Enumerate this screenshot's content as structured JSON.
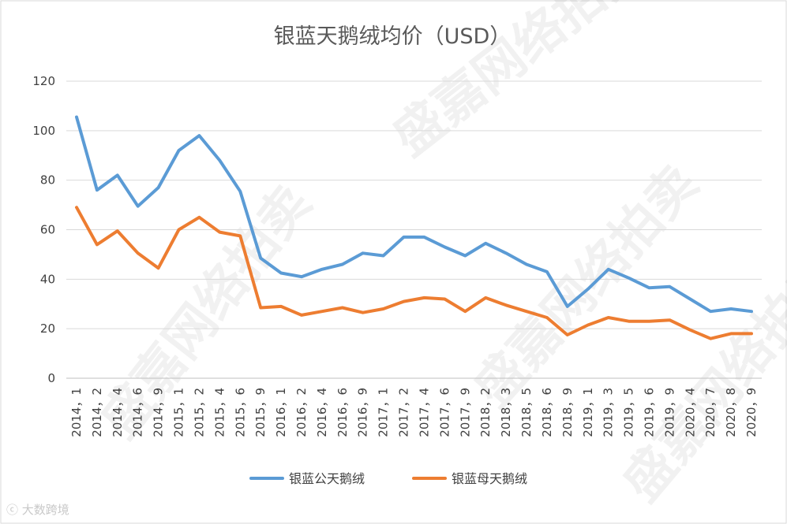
{
  "chart_data": {
    "type": "line",
    "title": "银蓝天鹅绒均价（USD）",
    "xlabel": "",
    "ylabel": "",
    "ylim": [
      0,
      120
    ],
    "yticks": [
      0,
      20,
      40,
      60,
      80,
      100,
      120
    ],
    "grid": true,
    "legend_position": "bottom",
    "categories": [
      "2014，1",
      "2014，2",
      "2014，4",
      "2014，6",
      "2014，9",
      "2015，1",
      "2015，2",
      "2015，4",
      "2015，6",
      "2015，9",
      "2016，1",
      "2016，2",
      "2016，4",
      "2016，6",
      "2016，9",
      "2017，1",
      "2017，2",
      "2017，4",
      "2017，6",
      "2017，9",
      "2018，2",
      "2018，3",
      "2018，5",
      "2018，6",
      "2018，9",
      "2019，1",
      "2019，3",
      "2019，5",
      "2019，6",
      "2019，9",
      "2020，4",
      "2020，7",
      "2020，8",
      "2020，9"
    ],
    "series": [
      {
        "name": "银蓝公天鹅绒",
        "color": "#5B9BD5",
        "values": [
          105.5,
          76,
          82,
          69.5,
          77,
          92,
          98,
          88,
          75.5,
          48.5,
          42.5,
          41,
          44,
          46,
          50.5,
          49.5,
          57,
          57,
          53,
          49.5,
          54.5,
          50.5,
          46,
          43,
          29,
          36,
          44,
          40.5,
          36.5,
          37,
          32,
          27,
          28,
          27
        ]
      },
      {
        "name": "银蓝母天鹅绒",
        "color": "#ED7D31",
        "values": [
          69,
          54,
          59.5,
          50.5,
          44.5,
          60,
          65,
          59,
          57.5,
          28.5,
          29,
          25.5,
          27,
          28.5,
          26.5,
          28,
          31,
          32.5,
          32,
          27,
          32.5,
          29.5,
          27,
          24.5,
          17.5,
          21.5,
          24.5,
          23,
          23,
          23.5,
          19.5,
          16,
          18,
          18
        ]
      }
    ]
  },
  "watermark": "盛嘉网络拍卖",
  "corner_logo": "大数跨境"
}
